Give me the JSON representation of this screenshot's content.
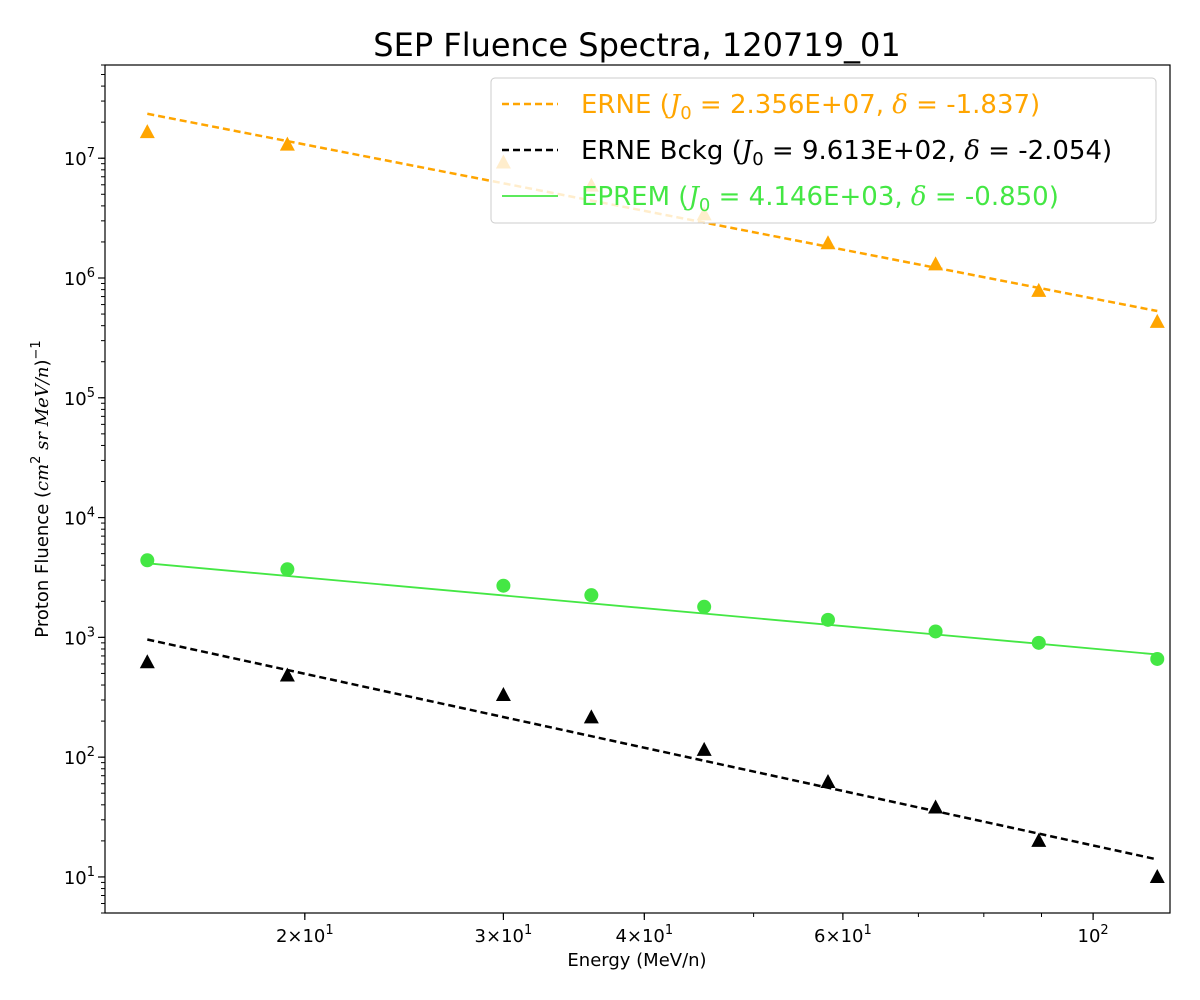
{
  "chart_data": {
    "type": "scatter",
    "title": "SEP Fluence Spectra, 120719_01",
    "xlabel": "Energy (MeV/n)",
    "ylabel": "Proton Fluence (cm² sr MeV/n)⁻¹",
    "x_scale": "log",
    "y_scale": "log",
    "xlim": [
      13.3,
      117
    ],
    "ylim": [
      5,
      60000000
    ],
    "grid": false,
    "legend_position": "top-right",
    "x_ticks": [
      {
        "value": 20,
        "base": "2×10",
        "exp": "1"
      },
      {
        "value": 30,
        "base": "3×10",
        "exp": "1"
      },
      {
        "value": 40,
        "base": "4×10",
        "exp": "1"
      },
      {
        "value": 60,
        "base": "6×10",
        "exp": "1"
      },
      {
        "value": 100,
        "base": "10",
        "exp": "2"
      }
    ],
    "y_ticks": [
      {
        "value": 10,
        "base": "10",
        "exp": "1"
      },
      {
        "value": 100,
        "base": "10",
        "exp": "2"
      },
      {
        "value": 1000,
        "base": "10",
        "exp": "3"
      },
      {
        "value": 10000,
        "base": "10",
        "exp": "4"
      },
      {
        "value": 100000,
        "base": "10",
        "exp": "5"
      },
      {
        "value": 1000000,
        "base": "10",
        "exp": "6"
      },
      {
        "value": 10000000,
        "base": "10",
        "exp": "7"
      }
    ],
    "energies": [
      14.5,
      19.3,
      30,
      35.9,
      45.2,
      58.2,
      72.5,
      89.5,
      114
    ],
    "series": [
      {
        "name": "ERNE",
        "color": "#FFA500",
        "marker": "triangle",
        "values": [
          16500000,
          13000000,
          9200000,
          5900000,
          3400000,
          1950000,
          1300000,
          780000,
          430000
        ],
        "fit": {
          "J0": "2.356E+07",
          "delta": "-1.837",
          "style": "dashed",
          "x": [
            14.5,
            114
          ],
          "y": [
            23500000,
            530000
          ]
        }
      },
      {
        "name": "ERNE Bckg",
        "color": "#000000",
        "marker": "triangle",
        "values": [
          620,
          480,
          330,
          215,
          115,
          62,
          38,
          20,
          10
        ],
        "fit": {
          "J0": "9.613E+02",
          "delta": "-2.054",
          "style": "dashed",
          "x": [
            14.5,
            114
          ],
          "y": [
            960,
            14
          ]
        }
      },
      {
        "name": "EPREM",
        "color": "#44E744",
        "marker": "circle",
        "values": [
          4400,
          3700,
          2700,
          2250,
          1800,
          1400,
          1120,
          900,
          660
        ],
        "fit": {
          "J0": "4.146E+03",
          "delta": "-0.850",
          "style": "solid",
          "x": [
            14.5,
            114
          ],
          "y": [
            4150,
            720
          ]
        }
      }
    ]
  }
}
